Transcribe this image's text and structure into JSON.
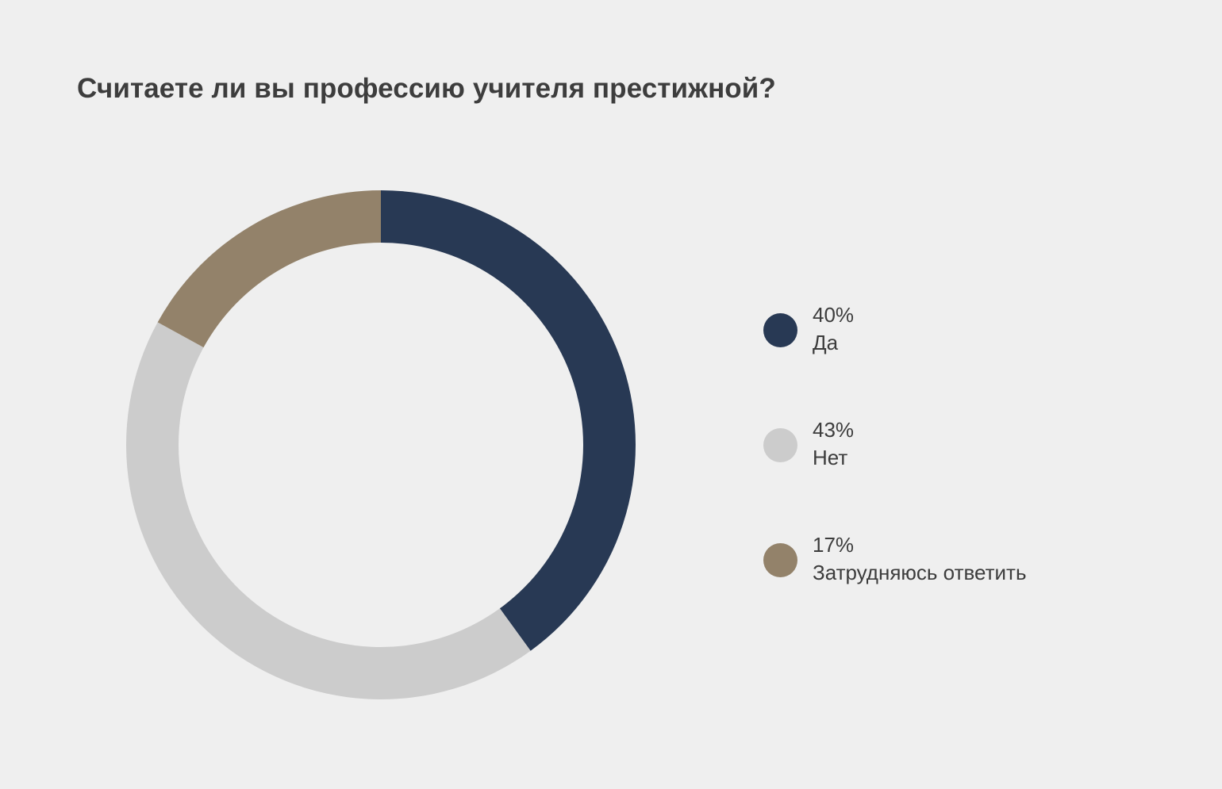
{
  "chart_data": {
    "type": "pie",
    "title": "Считаете ли вы профессию учителя престижной?",
    "donut": true,
    "start_angle_deg": 0,
    "direction": "clockwise",
    "legend_position": "right",
    "slices": [
      {
        "label": "Да",
        "value": 40,
        "value_label": "40%",
        "color": "#283954"
      },
      {
        "label": "Нет",
        "value": 43,
        "value_label": "43%",
        "color": "#cccccc"
      },
      {
        "label": "Затрудняюсь ответить",
        "value": 17,
        "value_label": "17%",
        "color": "#93826a"
      }
    ]
  }
}
